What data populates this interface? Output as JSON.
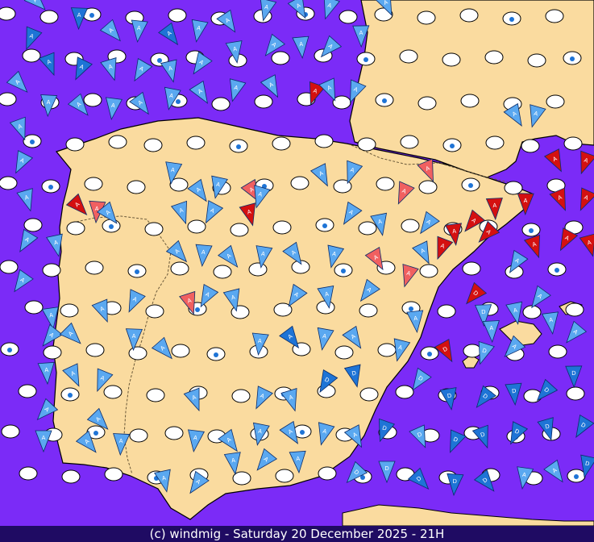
{
  "map": {
    "colors": {
      "sea": "#7b2bf7",
      "land": "#fadb9f",
      "coast": "#000000",
      "border": "#6b5a3a",
      "station": "#ffffff",
      "wind_light": "#5aa8f0",
      "wind_mid": "#1e74d6",
      "wind_strong": "#d41010",
      "wind_gust": "#f06060",
      "drop": "#1e74d6",
      "footer_bg": "#1f0b63",
      "footer_text": "#ffffff"
    },
    "icon_names": [
      "wind-flag-icon",
      "station-ellipse",
      "raindrop-icon"
    ],
    "flag_letters": [
      "A",
      "D"
    ]
  },
  "footer": {
    "caption": "(c) windmig - Saturday 20 December 2025 - 21H"
  }
}
